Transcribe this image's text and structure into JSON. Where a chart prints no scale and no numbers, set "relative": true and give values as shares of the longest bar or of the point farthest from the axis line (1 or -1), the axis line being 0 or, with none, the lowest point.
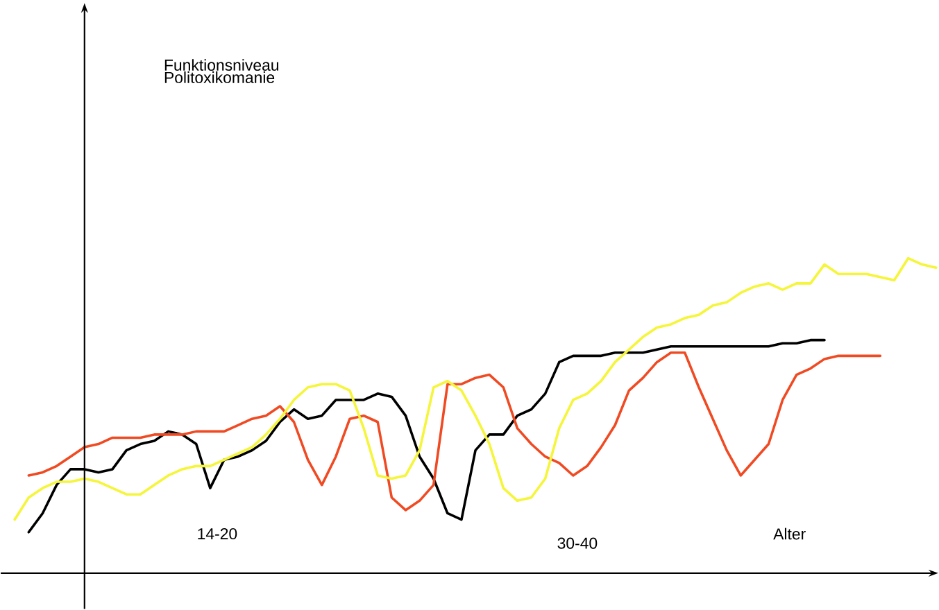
{
  "chart_data": {
    "type": "line",
    "relative": true,
    "xlabel": "Alter",
    "annotations": [
      "Funktionsniveau Politoxikomanie",
      "14-20",
      "30-40"
    ],
    "categories": [
      null,
      null,
      null,
      null,
      null,
      null,
      null,
      null,
      null,
      null,
      null,
      null,
      null,
      null,
      null,
      null,
      null,
      null,
      null,
      null,
      null,
      null,
      null,
      null,
      null,
      null,
      null,
      null,
      null,
      null,
      null,
      null,
      null,
      null,
      null,
      null,
      null,
      null,
      null,
      null,
      null,
      null,
      null,
      null,
      null,
      null,
      null,
      null,
      null,
      null,
      null,
      null,
      null,
      null,
      null,
      null,
      null,
      null,
      null,
      null,
      null,
      null,
      null,
      null,
      null,
      null,
      null
    ],
    "series": [
      {
        "color": "#000000",
        "values": [
          null,
          0.13,
          0.19,
          0.28,
          0.33,
          0.33,
          0.32,
          0.33,
          0.39,
          0.41,
          0.42,
          0.45,
          0.44,
          0.41,
          0.27,
          0.36,
          0.37,
          0.39,
          0.42,
          0.48,
          0.52,
          0.49,
          0.5,
          0.55,
          0.55,
          0.55,
          0.57,
          0.56,
          0.5,
          0.37,
          0.3,
          0.19,
          0.17,
          0.39,
          0.44,
          0.44,
          0.5,
          0.52,
          0.57,
          0.67,
          0.69,
          0.69,
          0.69,
          0.7,
          0.7,
          0.7,
          0.71,
          0.72,
          0.72,
          0.72,
          0.72,
          0.72,
          0.72,
          0.72,
          0.72,
          0.73,
          0.73,
          0.74,
          0.74,
          null,
          null,
          null,
          null,
          null,
          null,
          null,
          null
        ]
      },
      {
        "color": "#f04a23",
        "values": [
          null,
          0.31,
          0.32,
          0.34,
          0.37,
          0.4,
          0.41,
          0.43,
          0.43,
          0.43,
          0.44,
          0.44,
          0.44,
          0.45,
          0.45,
          0.45,
          0.47,
          0.49,
          0.5,
          0.53,
          0.48,
          0.36,
          0.28,
          0.37,
          0.49,
          0.5,
          0.48,
          0.24,
          0.2,
          0.23,
          0.28,
          0.6,
          0.6,
          0.62,
          0.63,
          0.59,
          0.46,
          0.41,
          0.37,
          0.35,
          0.31,
          0.34,
          0.4,
          0.47,
          0.58,
          0.62,
          0.67,
          0.7,
          0.7,
          0.59,
          0.49,
          0.39,
          0.31,
          0.36,
          0.41,
          0.55,
          0.63,
          0.65,
          0.68,
          0.69,
          0.69,
          0.69,
          0.69,
          null,
          null,
          null,
          null
        ]
      },
      {
        "color": "#f5f53a",
        "values": [
          0.17,
          0.24,
          0.27,
          0.29,
          0.29,
          0.3,
          0.29,
          0.27,
          0.25,
          0.25,
          0.28,
          0.31,
          0.33,
          0.34,
          0.34,
          0.36,
          0.38,
          0.4,
          0.44,
          0.49,
          0.55,
          0.59,
          0.6,
          0.6,
          0.58,
          0.46,
          0.31,
          0.3,
          0.31,
          0.39,
          0.59,
          0.61,
          0.58,
          0.5,
          0.41,
          0.27,
          0.23,
          0.24,
          0.3,
          0.46,
          0.55,
          0.57,
          0.61,
          0.67,
          0.71,
          0.75,
          0.78,
          0.79,
          0.81,
          0.82,
          0.85,
          0.86,
          0.89,
          0.91,
          0.92,
          0.9,
          0.92,
          0.92,
          0.98,
          0.95,
          0.95,
          0.95,
          0.94,
          0.93,
          1.0,
          0.98,
          0.97
        ]
      }
    ]
  }
}
